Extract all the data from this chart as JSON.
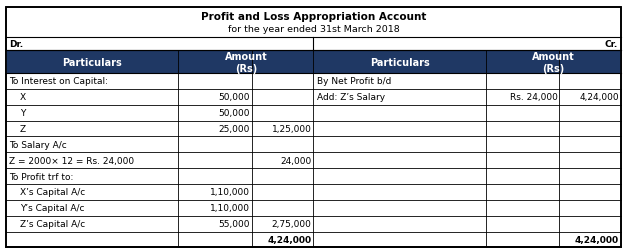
{
  "title_line1": "Profit and Loss Appropriation Account",
  "title_line2": "for the year ended 31st March 2018",
  "header_bg": "#1F3864",
  "header_fg": "#FFFFFF",
  "props": [
    0.28,
    0.12,
    0.1,
    0.28,
    0.12,
    0.1
  ],
  "left_rows": [
    [
      "To Interest on Capital:",
      "",
      ""
    ],
    [
      "X",
      "50,000",
      ""
    ],
    [
      "Y",
      "50,000",
      ""
    ],
    [
      "Z",
      "25,000",
      "1,25,000"
    ],
    [
      "To Salary A/c",
      "",
      ""
    ],
    [
      "Z = 2000× 12 = Rs. 24,000",
      "",
      "24,000"
    ],
    [
      "To Profit trf to:",
      "",
      ""
    ],
    [
      "X’s Capital A/c",
      "1,10,000",
      ""
    ],
    [
      "Y’s Capital A/c",
      "1,10,000",
      ""
    ],
    [
      "Z’s Capital A/c",
      "55,000",
      "2,75,000"
    ],
    [
      "",
      "",
      "4,24,000"
    ]
  ],
  "right_rows": [
    [
      "By Net Profit b/d",
      "",
      ""
    ],
    [
      "Add: Z’s Salary",
      "Rs. 24,000",
      "4,24,000"
    ],
    [
      "",
      "",
      ""
    ],
    [
      "",
      "",
      ""
    ],
    [
      "",
      "",
      ""
    ],
    [
      "",
      "",
      ""
    ],
    [
      "",
      "",
      ""
    ],
    [
      "",
      "",
      ""
    ],
    [
      "",
      "",
      ""
    ],
    [
      "",
      "",
      ""
    ],
    [
      "",
      "",
      "4,24,000"
    ]
  ],
  "sub_items": [
    "X",
    "Y",
    "Z",
    "X’s Capital A/c",
    "Y’s Capital A/c",
    "Z’s Capital A/c"
  ]
}
